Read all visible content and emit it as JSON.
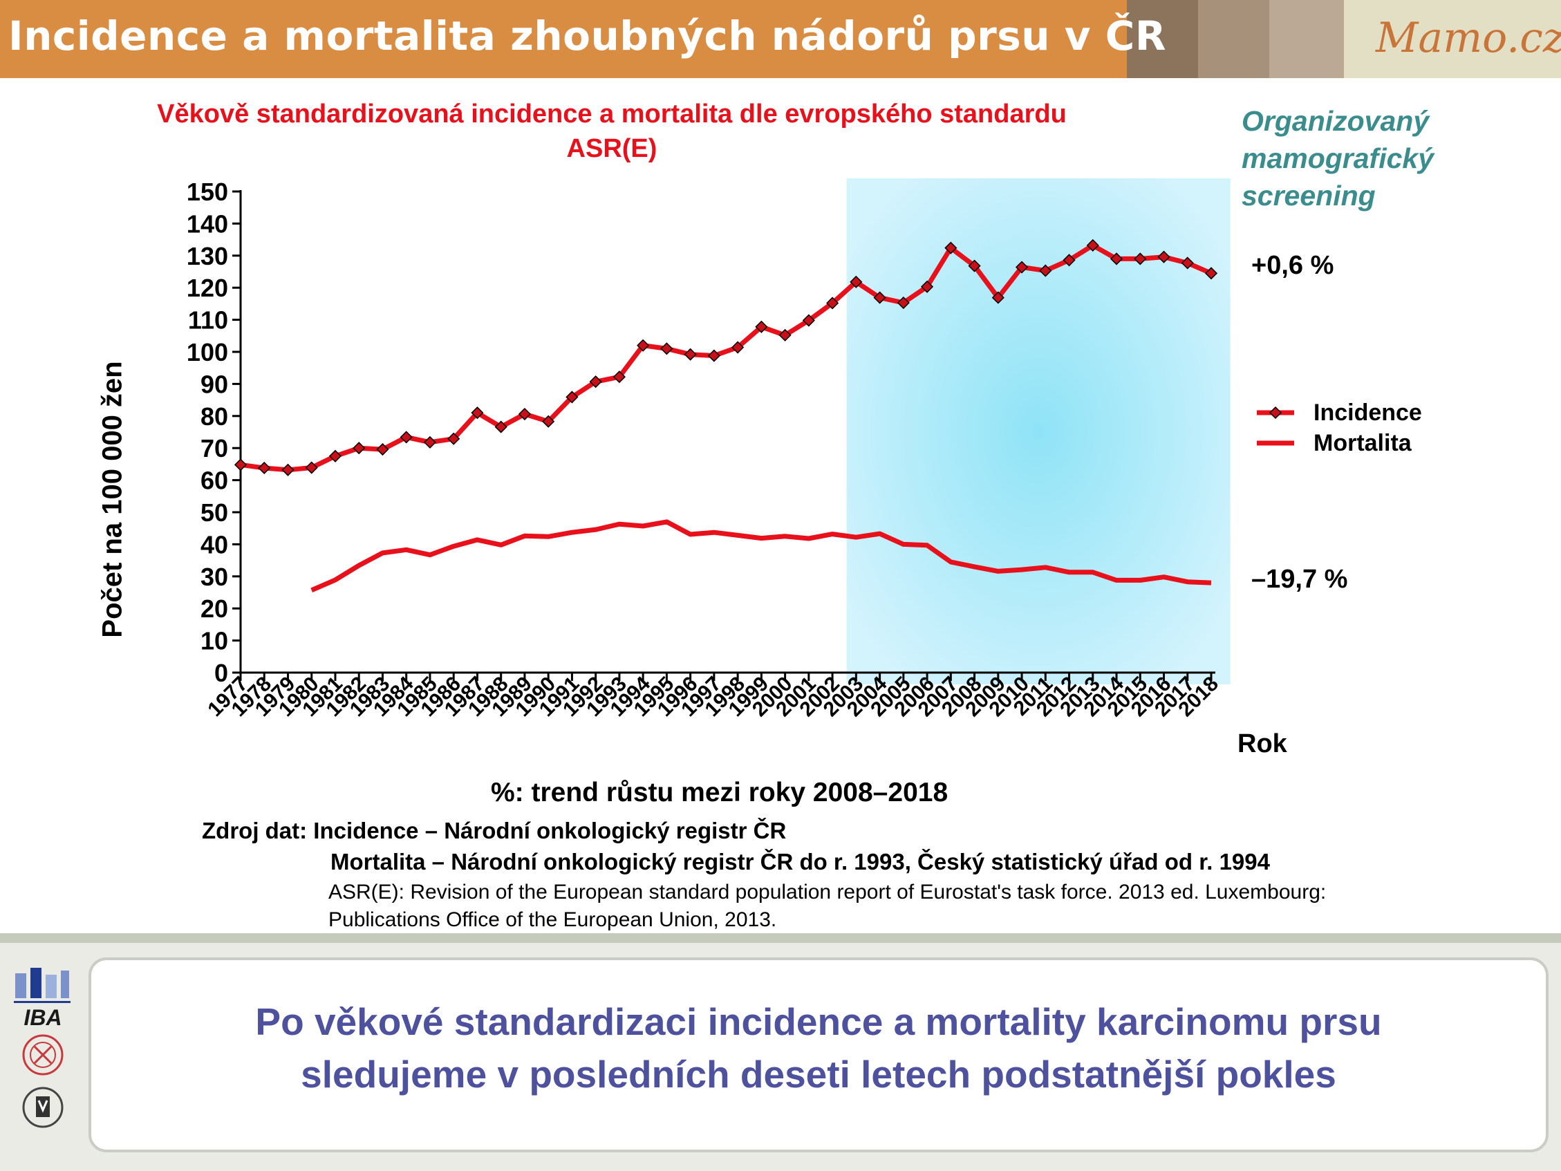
{
  "header": {
    "title": "Incidence a mortalita zhoubných nádorů prsu v ČR",
    "logo": "Mamo.cz",
    "swatches": [
      "#8c735b",
      "#a8917a",
      "#bba995",
      "#e3dfc4"
    ]
  },
  "chart_header": {
    "line1": "Věkově standardizovaná incidence a mortalita dle evropského standardu",
    "line2": "ASR(E)"
  },
  "screening_label": {
    "line1": "Organizovaný",
    "line2": "mamografický",
    "line3": "screening"
  },
  "colors": {
    "series": "#e8101a",
    "marker": "#c8101a",
    "screening_band": "#bfeefb",
    "screening_text": "#3b8d8d",
    "footer_text": "#4e519d"
  },
  "chart_data": {
    "type": "line",
    "ylabel": "Počet  na 100 000 žen",
    "xlabel": "Rok",
    "ylim": [
      0,
      150
    ],
    "yticks": [
      0,
      10,
      20,
      30,
      40,
      50,
      60,
      70,
      80,
      90,
      100,
      110,
      120,
      130,
      140,
      150
    ],
    "x": [
      1977,
      1978,
      1979,
      1980,
      1981,
      1982,
      1983,
      1984,
      1985,
      1986,
      1987,
      1988,
      1989,
      1990,
      1991,
      1992,
      1993,
      1994,
      1995,
      1996,
      1997,
      1998,
      1999,
      2000,
      2001,
      2002,
      2003,
      2004,
      2005,
      2006,
      2007,
      2008,
      2009,
      2010,
      2011,
      2012,
      2013,
      2014,
      2015,
      2016,
      2017,
      2018
    ],
    "highlight_range": [
      2002.6,
      2018.4
    ],
    "series": [
      {
        "name": "Incidence",
        "marker": "diamond",
        "values": [
          64.8,
          63.8,
          63.2,
          63.9,
          67.5,
          70.0,
          69.6,
          73.4,
          71.8,
          72.9,
          81.0,
          76.6,
          80.6,
          78.3,
          85.9,
          90.7,
          92.2,
          102.0,
          101.0,
          99.2,
          98.8,
          101.4,
          107.8,
          105.2,
          109.8,
          115.2,
          121.8,
          116.9,
          115.3,
          120.3,
          132.4,
          126.8,
          116.9,
          126.4,
          125.3,
          128.6,
          133.2,
          129.0,
          129.0,
          129.6,
          127.7,
          124.5
        ]
      },
      {
        "name": "Mortalita",
        "marker": "none",
        "values": [
          null,
          null,
          null,
          25.7,
          28.9,
          33.4,
          37.3,
          38.3,
          36.7,
          39.4,
          41.4,
          39.8,
          42.6,
          42.4,
          43.7,
          44.6,
          46.3,
          45.7,
          47.0,
          43.1,
          43.7,
          42.8,
          41.9,
          42.5,
          41.8,
          43.2,
          42.2,
          43.3,
          40.0,
          39.7,
          34.5,
          33.0,
          31.6,
          32.1,
          32.8,
          31.3,
          31.3,
          28.8,
          28.8,
          29.8,
          28.3,
          28.0
        ]
      }
    ],
    "annotations": {
      "incidence_trend": "+0,6 %",
      "mortality_trend": "–19,7 %"
    }
  },
  "notes": {
    "trend": "%: trend růstu mezi roky 2008–2018",
    "source_1": "Zdroj dat: Incidence – Národní onkologický registr ČR",
    "source_2": "Mortalita – Národní onkologický registr ČR do r. 1993, Český statistický úřad od r. 1994",
    "source_3": "ASR(E): Revision of the European standard population report of Eurostat's task force. 2013 ed. Luxembourg:",
    "source_4": "Publications Office of the European Union, 2013."
  },
  "footer": {
    "line1": "Po věkové standardizaci incidence a mortality karcinomu prsu",
    "line2": "sledujeme v posledních deseti letech podstatnější pokles",
    "logo_iba": "IBA"
  }
}
